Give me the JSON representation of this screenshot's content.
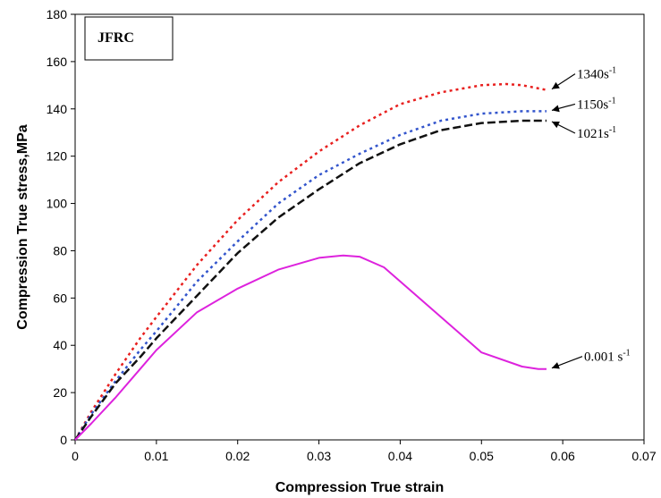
{
  "chart_data": {
    "type": "line",
    "title": "",
    "xlabel": "Compression True strain",
    "ylabel": "Compression True stress,MPa",
    "xlim": [
      0,
      0.07
    ],
    "ylim": [
      0,
      180
    ],
    "x_ticks": [
      0,
      0.01,
      0.02,
      0.03,
      0.04,
      0.05,
      0.06,
      0.07
    ],
    "x_tick_labels": [
      "0",
      "0.01",
      "0.02",
      "0.03",
      "0.04",
      "0.05",
      "0.06",
      "0.07"
    ],
    "y_ticks": [
      0,
      20,
      40,
      60,
      80,
      100,
      120,
      140,
      160,
      180
    ],
    "y_tick_labels": [
      "0",
      "20",
      "40",
      "60",
      "80",
      "100",
      "120",
      "140",
      "160",
      "180"
    ],
    "grid": false,
    "box_label": "JFRC",
    "series": [
      {
        "name": "1340s-1",
        "label_main": "1340s",
        "label_sup": "-1",
        "color": "#e8201f",
        "style": "dotted",
        "x": [
          0,
          0.002,
          0.005,
          0.008,
          0.01,
          0.015,
          0.02,
          0.025,
          0.03,
          0.035,
          0.04,
          0.045,
          0.05,
          0.053,
          0.055,
          0.058
        ],
        "y": [
          0,
          12,
          28,
          43,
          52,
          74,
          93,
          109,
          122,
          133,
          142,
          147,
          150,
          150.5,
          150,
          148
        ]
      },
      {
        "name": "1150s-1",
        "label_main": "1150s",
        "label_sup": "-1",
        "color": "#3355cc",
        "style": "dotted",
        "x": [
          0,
          0.002,
          0.005,
          0.008,
          0.01,
          0.015,
          0.02,
          0.025,
          0.03,
          0.035,
          0.04,
          0.045,
          0.05,
          0.055,
          0.058
        ],
        "y": [
          0,
          11,
          25,
          38,
          46,
          67,
          84,
          100,
          112,
          121,
          129,
          135,
          138,
          139,
          139
        ]
      },
      {
        "name": "1021s-1",
        "label_main": "1021s",
        "label_sup": "-1",
        "color": "#111111",
        "style": "dashed",
        "x": [
          0,
          0.002,
          0.005,
          0.008,
          0.01,
          0.015,
          0.02,
          0.025,
          0.03,
          0.035,
          0.04,
          0.045,
          0.05,
          0.055,
          0.058
        ],
        "y": [
          0,
          10,
          24,
          35,
          43,
          61,
          79,
          94,
          106,
          117,
          125,
          131,
          134,
          135,
          135
        ]
      },
      {
        "name": "0.001 s-1",
        "label_main": "0.001 s",
        "label_sup": "-1",
        "color": "#dd22dd",
        "style": "solid",
        "x": [
          0,
          0.002,
          0.005,
          0.008,
          0.01,
          0.015,
          0.02,
          0.025,
          0.03,
          0.033,
          0.035,
          0.038,
          0.04,
          0.045,
          0.05,
          0.055,
          0.057,
          0.058
        ],
        "y": [
          0,
          7,
          18,
          30,
          38,
          54,
          64,
          72,
          77,
          78,
          77.5,
          73,
          67,
          52,
          37,
          31,
          30,
          30
        ]
      }
    ]
  }
}
